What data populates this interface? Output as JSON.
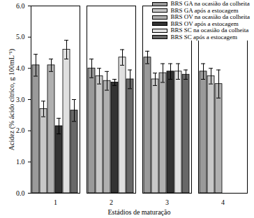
{
  "chart_data": {
    "type": "bar",
    "x_label": "Estádios de maturação",
    "y_label": "Acidez (% ácido cítrico, g 100mL⁻¹)",
    "categories": [
      "1",
      "2",
      "3",
      "4"
    ],
    "series": [
      {
        "name": "BRS GA na ocasião da colheita",
        "color": "#9a9a9a",
        "values": [
          4.1,
          4.0,
          4.35,
          3.9
        ],
        "errors": [
          0.35,
          0.3,
          0.2,
          0.25
        ]
      },
      {
        "name": "BRS GA após a estocagem",
        "color": "#c8c8c8",
        "values": [
          2.7,
          3.75,
          3.65,
          3.75
        ],
        "errors": [
          0.25,
          0.25,
          0.2,
          0.25
        ]
      },
      {
        "name": "BRS OV na ocasião da colheita",
        "color": "#b0b0b0",
        "values": [
          4.1,
          3.6,
          3.85,
          3.5
        ],
        "errors": [
          0.2,
          0.3,
          0.3,
          0.45
        ]
      },
      {
        "name": "BRS OV após a estocagem",
        "color": "#333333",
        "values": [
          2.15,
          3.55,
          3.9,
          null
        ],
        "errors": [
          0.25,
          0.1,
          0.25,
          null
        ]
      },
      {
        "name": "BRS SC na ocasião da colheita",
        "color": "#e0e0e0",
        "values": [
          4.6,
          4.35,
          3.9,
          null
        ],
        "errors": [
          0.3,
          0.25,
          0.25,
          null
        ]
      },
      {
        "name": "BRS SC após a estocagem",
        "color": "#686868",
        "values": [
          2.65,
          3.65,
          3.8,
          null
        ],
        "errors": [
          0.35,
          0.3,
          0.15,
          null
        ]
      }
    ],
    "ylim": [
      0,
      6
    ],
    "yticks": [
      0,
      1,
      2,
      3,
      4,
      5,
      6
    ],
    "legend": "top-right",
    "grid": false
  }
}
